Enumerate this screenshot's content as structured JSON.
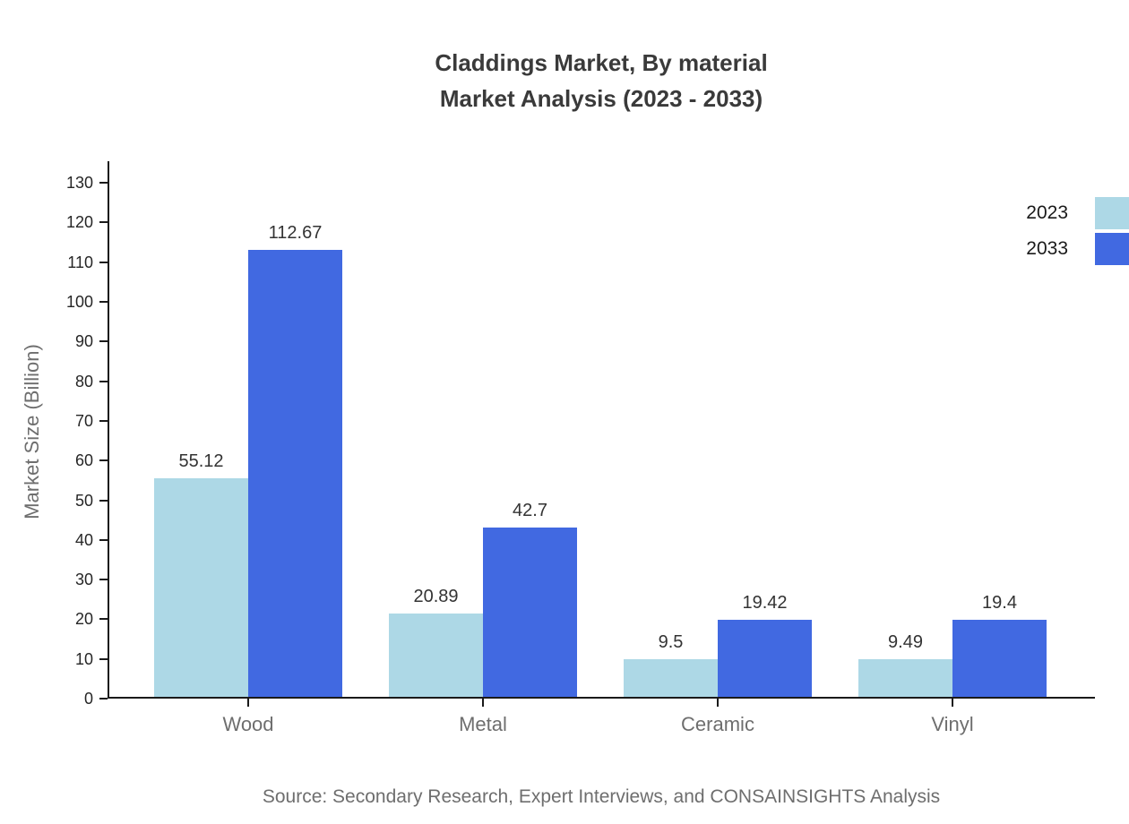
{
  "title": {
    "line1": "Claddings Market, By material",
    "line2": "Market Analysis (2023 - 2033)"
  },
  "ylabel": "Market Size (Billion)",
  "source": "Source: Secondary Research, Expert Interviews, and CONSAINSIGHTS Analysis",
  "legend": [
    {
      "label": "2023",
      "color": "#ADD8E6"
    },
    {
      "label": "2033",
      "color": "#4169E1"
    }
  ],
  "colors": {
    "series_2023": "#ADD8E6",
    "series_2033": "#4169E1",
    "axis": "#1a1a1a",
    "title_text": "#3a3a3a",
    "muted_text": "#6e6e6e",
    "value_text": "#333333",
    "background": "#ffffff"
  },
  "chart_data": {
    "type": "bar",
    "title": "Claddings Market, By material — Market Analysis (2023 - 2033)",
    "xlabel": "",
    "ylabel": "Market Size (Billion)",
    "categories": [
      "Wood",
      "Metal",
      "Ceramic",
      "Vinyl"
    ],
    "series": [
      {
        "name": "2023",
        "color": "#ADD8E6",
        "values": [
          55.12,
          20.89,
          9.5,
          9.49
        ],
        "value_labels": [
          "55.12",
          "20.89",
          "9.5",
          "9.49"
        ]
      },
      {
        "name": "2033",
        "color": "#4169E1",
        "values": [
          112.67,
          42.7,
          19.42,
          19.4
        ],
        "value_labels": [
          "112.67",
          "42.7",
          "19.42",
          "19.4"
        ]
      }
    ],
    "ylim": [
      0,
      130
    ],
    "yticks": [
      0,
      10,
      20,
      30,
      40,
      50,
      60,
      70,
      80,
      90,
      100,
      110,
      120,
      130
    ],
    "grid": false,
    "legend_position": "top-right"
  }
}
